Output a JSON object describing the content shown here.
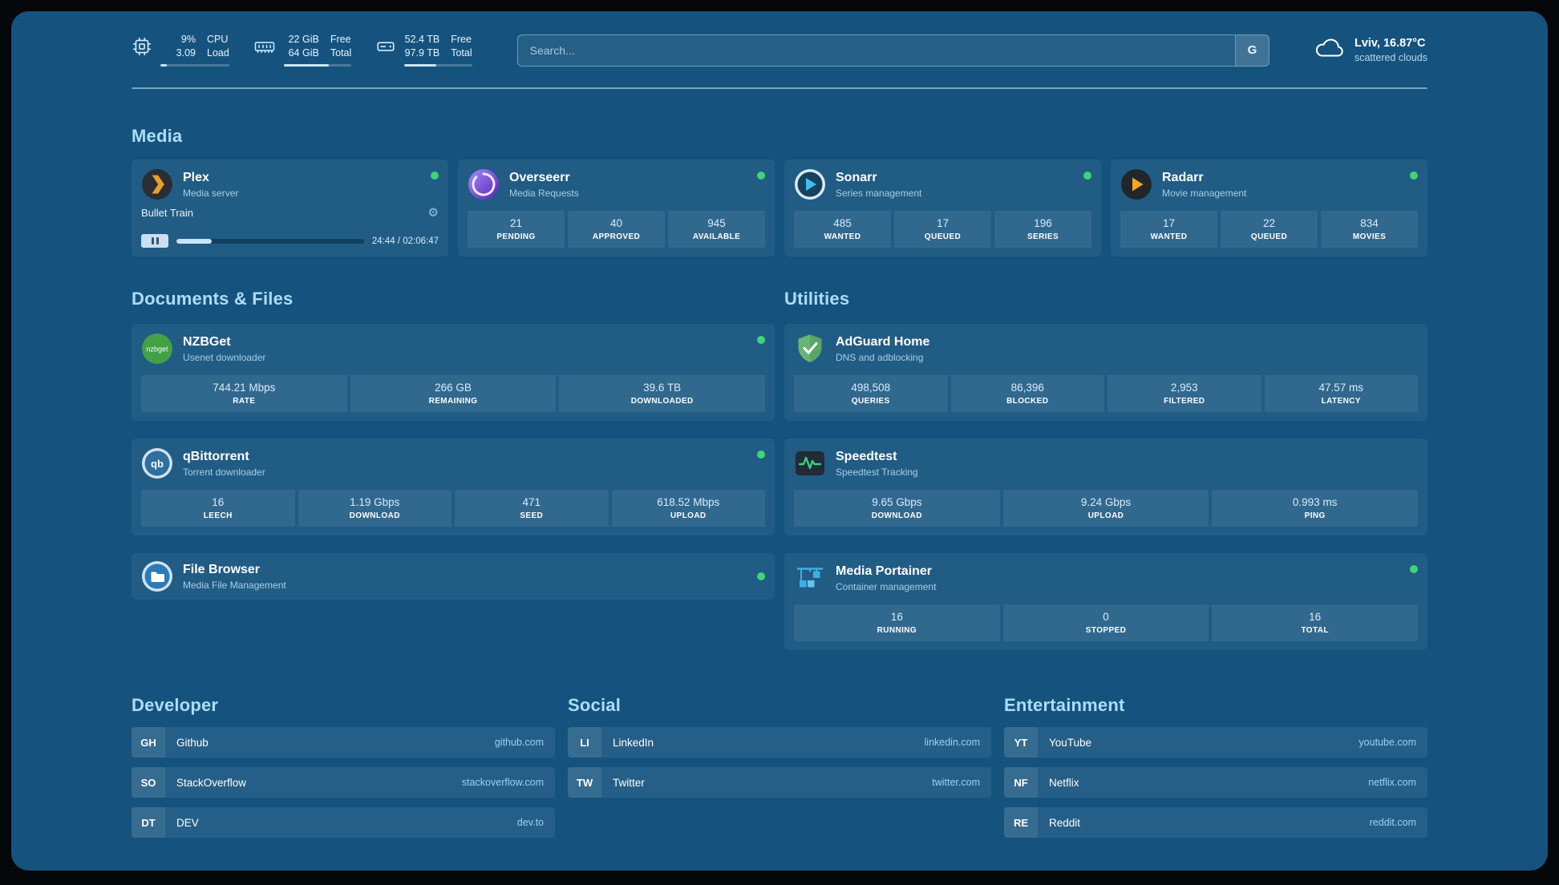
{
  "colors": {
    "page_bg": "#15537E",
    "status_green": "#3ED573",
    "heading": "#AEDCF8"
  },
  "icons": {
    "gear": "⚙",
    "nzbget_text": "nzbget",
    "qb_text": "qb"
  },
  "topbar": {
    "cpu": {
      "v1": "9%",
      "v2": "3.09",
      "l1": "CPU",
      "l2": "Load",
      "progress": 9
    },
    "ram": {
      "v1": "22 GiB",
      "v2": "64 GiB",
      "l1": "Free",
      "l2": "Total",
      "progress": 66
    },
    "disk": {
      "v1": "52.4 TB",
      "v2": "97.9 TB",
      "l1": "Free",
      "l2": "Total",
      "progress": 47
    },
    "search": {
      "placeholder": "Search...",
      "provider": "G"
    },
    "weather": {
      "location": "Lviv, 16.87°C",
      "condition": "scattered clouds"
    }
  },
  "media": {
    "title": "Media",
    "plex": {
      "name": "Plex",
      "subtitle": "Media server",
      "now_playing": "Bullet Train",
      "time": "24:44 / 02:06:47",
      "progress": 19
    },
    "overseerr": {
      "name": "Overseerr",
      "subtitle": "Media Requests",
      "stats": [
        {
          "value": "21",
          "label": "PENDING"
        },
        {
          "value": "40",
          "label": "APPROVED"
        },
        {
          "value": "945",
          "label": "AVAILABLE"
        }
      ]
    },
    "sonarr": {
      "name": "Sonarr",
      "subtitle": "Series management",
      "stats": [
        {
          "value": "485",
          "label": "WANTED"
        },
        {
          "value": "17",
          "label": "QUEUED"
        },
        {
          "value": "196",
          "label": "SERIES"
        }
      ]
    },
    "radarr": {
      "name": "Radarr",
      "subtitle": "Movie management",
      "stats": [
        {
          "value": "17",
          "label": "WANTED"
        },
        {
          "value": "22",
          "label": "QUEUED"
        },
        {
          "value": "834",
          "label": "MOVIES"
        }
      ]
    }
  },
  "documents": {
    "title": "Documents & Files",
    "nzbget": {
      "name": "NZBGet",
      "subtitle": "Usenet downloader",
      "stats": [
        {
          "value": "744.21 Mbps",
          "label": "RATE"
        },
        {
          "value": "266 GB",
          "label": "REMAINING"
        },
        {
          "value": "39.6 TB",
          "label": "DOWNLOADED"
        }
      ]
    },
    "qbittorrent": {
      "name": "qBittorrent",
      "subtitle": "Torrent downloader",
      "stats": [
        {
          "value": "16",
          "label": "LEECH"
        },
        {
          "value": "1.19 Gbps",
          "label": "DOWNLOAD"
        },
        {
          "value": "471",
          "label": "SEED"
        },
        {
          "value": "618.52 Mbps",
          "label": "UPLOAD"
        }
      ]
    },
    "filebrowser": {
      "name": "File Browser",
      "subtitle": "Media File Management"
    }
  },
  "utilities": {
    "title": "Utilities",
    "adguard": {
      "name": "AdGuard Home",
      "subtitle": "DNS and adblocking",
      "stats": [
        {
          "value": "498,508",
          "label": "QUERIES"
        },
        {
          "value": "86,396",
          "label": "BLOCKED"
        },
        {
          "value": "2,953",
          "label": "FILTERED"
        },
        {
          "value": "47.57 ms",
          "label": "LATENCY"
        }
      ]
    },
    "speedtest": {
      "name": "Speedtest",
      "subtitle": "Speedtest Tracking",
      "stats": [
        {
          "value": "9.65 Gbps",
          "label": "DOWNLOAD"
        },
        {
          "value": "9.24 Gbps",
          "label": "UPLOAD"
        },
        {
          "value": "0.993 ms",
          "label": "PING"
        }
      ]
    },
    "portainer": {
      "name": "Media Portainer",
      "subtitle": "Container management",
      "stats": [
        {
          "value": "16",
          "label": "RUNNING"
        },
        {
          "value": "0",
          "label": "STOPPED"
        },
        {
          "value": "16",
          "label": "TOTAL"
        }
      ]
    }
  },
  "bookmarks": {
    "developer": {
      "title": "Developer",
      "links": [
        {
          "abbr": "GH",
          "name": "Github",
          "url": "github.com"
        },
        {
          "abbr": "SO",
          "name": "StackOverflow",
          "url": "stackoverflow.com"
        },
        {
          "abbr": "DT",
          "name": "DEV",
          "url": "dev.to"
        }
      ]
    },
    "social": {
      "title": "Social",
      "links": [
        {
          "abbr": "LI",
          "name": "LinkedIn",
          "url": "linkedin.com"
        },
        {
          "abbr": "TW",
          "name": "Twitter",
          "url": "twitter.com"
        }
      ]
    },
    "entertainment": {
      "title": "Entertainment",
      "links": [
        {
          "abbr": "YT",
          "name": "YouTube",
          "url": "youtube.com"
        },
        {
          "abbr": "NF",
          "name": "Netflix",
          "url": "netflix.com"
        },
        {
          "abbr": "RE",
          "name": "Reddit",
          "url": "reddit.com"
        }
      ]
    }
  }
}
